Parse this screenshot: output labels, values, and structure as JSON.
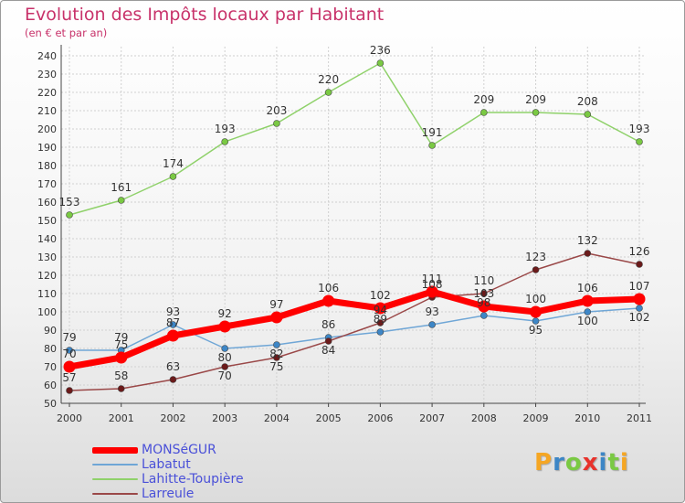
{
  "chart_data": {
    "type": "line",
    "title": "Evolution des Impôts locaux par Habitant",
    "subtitle": "(en € et par an)",
    "categories": [
      "2000",
      "2001",
      "2002",
      "2003",
      "2004",
      "2005",
      "2006",
      "2007",
      "2008",
      "2009",
      "2010",
      "2011"
    ],
    "ylim": [
      50,
      240
    ],
    "yticks": [
      50,
      60,
      70,
      80,
      90,
      100,
      110,
      120,
      130,
      140,
      150,
      160,
      170,
      180,
      190,
      200,
      210,
      220,
      230,
      240
    ],
    "series": [
      {
        "name": "MONSéGUR",
        "color": "#ff0000",
        "marker": "#ff0000",
        "width": 7,
        "values": [
          70,
          75,
          87,
          92,
          97,
          106,
          102,
          111,
          103,
          100,
          106,
          107
        ]
      },
      {
        "name": "Labatut",
        "color": "#6fa6d6",
        "marker": "#3d86c6",
        "width": 1.5,
        "values": [
          79,
          79,
          93,
          80,
          82,
          86,
          89,
          93,
          98,
          95,
          100,
          102
        ]
      },
      {
        "name": "Lahitte-Toupière",
        "color": "#8fd16a",
        "marker": "#7ac943",
        "width": 1.5,
        "values": [
          153,
          161,
          174,
          193,
          203,
          220,
          236,
          191,
          209,
          209,
          208,
          193
        ]
      },
      {
        "name": "Larreule",
        "color": "#9a4848",
        "marker": "#6b1a1a",
        "width": 1.5,
        "values": [
          57,
          58,
          63,
          70,
          75,
          84,
          94,
          108,
          110,
          123,
          132,
          126
        ]
      }
    ]
  },
  "legend": {
    "items": [
      {
        "label": "MONSéGUR"
      },
      {
        "label": "Labatut"
      },
      {
        "label": "Lahitte-Toupière"
      },
      {
        "label": "Larreule"
      }
    ]
  },
  "logo": {
    "letters": [
      "P",
      "r",
      "o",
      "x",
      "i",
      "t",
      "i"
    ],
    "colors": [
      "#f5a623",
      "#3d86c6",
      "#7ac943",
      "#e8322b",
      "#3d86c6",
      "#7ac943",
      "#f5a623"
    ]
  }
}
